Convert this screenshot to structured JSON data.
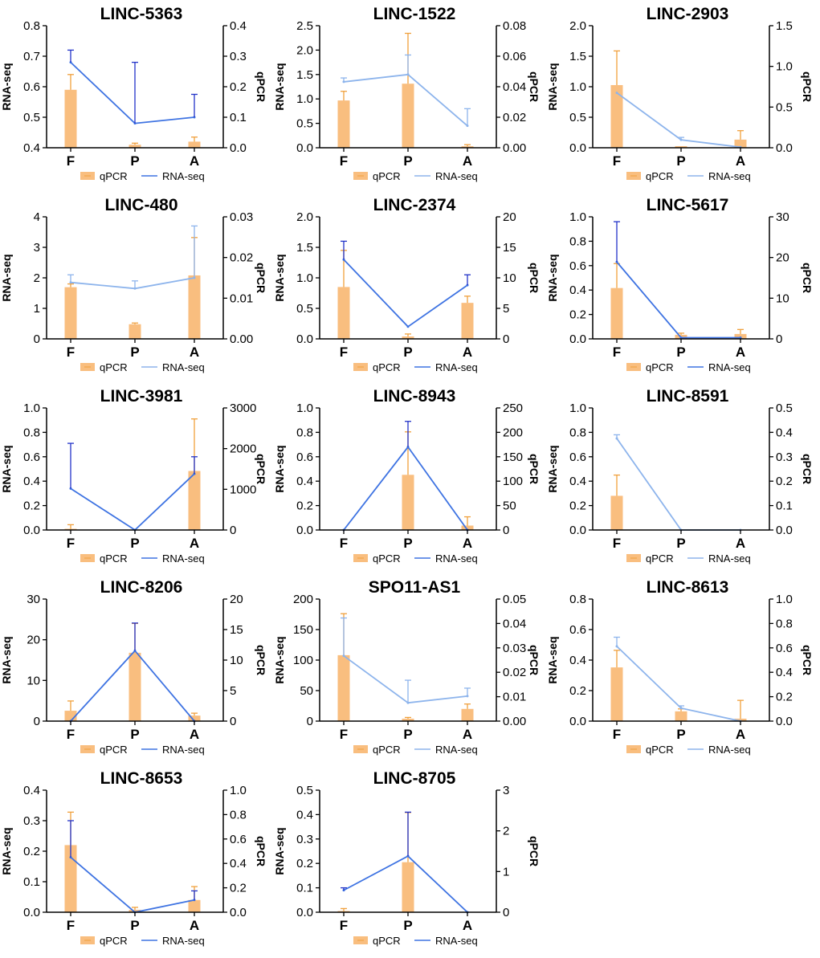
{
  "colors": {
    "bar": "#F9BE7F",
    "bar_err": "#F0A03C",
    "line": "#3E73E2",
    "line_err": "#2233C8",
    "line_light": "#8DB4EC",
    "axis": "#000000"
  },
  "chart_data": [
    {
      "type": "bar+line",
      "title": "LINC-5363",
      "categories": [
        "F",
        "P",
        "A"
      ],
      "ylabel_left": "RNA-seq",
      "ylabel_right": "qPCR",
      "left_ticks": [
        "0.4",
        "0.5",
        "0.6",
        "0.7",
        "0.8"
      ],
      "right_ticks": [
        "0.0",
        "0.1",
        "0.2",
        "0.3",
        "0.4"
      ],
      "ylim_left": [
        0.4,
        0.8
      ],
      "ylim_right": [
        0,
        0.4
      ],
      "series": [
        {
          "name": "qPCR",
          "kind": "bar",
          "axis": "right",
          "values": [
            0.19,
            0.01,
            0.02
          ],
          "errors": [
            0.05,
            0.005,
            0.015
          ]
        },
        {
          "name": "RNA-seq",
          "kind": "line",
          "axis": "left",
          "values": [
            0.68,
            0.48,
            0.5
          ],
          "errors": [
            0.04,
            0.2,
            0.075
          ]
        }
      ],
      "legend": [
        "qPCR",
        "RNA-seq"
      ],
      "line_tone": "dark"
    },
    {
      "type": "bar+line",
      "title": "LINC-1522",
      "categories": [
        "F",
        "P",
        "A"
      ],
      "ylabel_left": "RNA-seq",
      "ylabel_right": "qPCR",
      "left_ticks": [
        "0.0",
        "0.5",
        "1.0",
        "1.5",
        "2.0",
        "2.5"
      ],
      "right_ticks": [
        "0.00",
        "0.02",
        "0.04",
        "0.06",
        "0.08"
      ],
      "ylim_left": [
        0,
        2.5
      ],
      "ylim_right": [
        0,
        0.08
      ],
      "series": [
        {
          "name": "qPCR",
          "kind": "bar",
          "axis": "right",
          "values": [
            0.031,
            0.042,
            0.001
          ],
          "errors": [
            0.006,
            0.033,
            0.001
          ]
        },
        {
          "name": "RNA-seq",
          "kind": "line",
          "axis": "left",
          "values": [
            1.35,
            1.5,
            0.45
          ],
          "errors": [
            0.08,
            0.4,
            0.35
          ]
        }
      ],
      "legend": [
        "qPCR",
        "RNA-seq"
      ],
      "line_tone": "light"
    },
    {
      "type": "bar+line",
      "title": "LINC-2903",
      "categories": [
        "F",
        "P",
        "A"
      ],
      "ylabel_left": "RNA-seq",
      "ylabel_right": "qPCR",
      "left_ticks": [
        "0.0",
        "0.5",
        "1.0",
        "1.5",
        "2.0"
      ],
      "right_ticks": [
        "0.0",
        "0.5",
        "1.0",
        "1.5"
      ],
      "ylim_left": [
        0,
        2.0
      ],
      "ylim_right": [
        0,
        1.5
      ],
      "series": [
        {
          "name": "qPCR",
          "kind": "bar",
          "axis": "right",
          "values": [
            0.77,
            0.02,
            0.1
          ],
          "errors": [
            0.42,
            0.0,
            0.11
          ]
        },
        {
          "name": "RNA-seq",
          "kind": "line",
          "axis": "left",
          "values": [
            0.9,
            0.13,
            0.01
          ],
          "errors": [
            0.0,
            0.04,
            0.0
          ]
        }
      ],
      "legend": [
        "qPCR",
        "RNA-seq"
      ],
      "line_tone": "light"
    },
    {
      "type": "bar+line",
      "title": "LINC-480",
      "categories": [
        "F",
        "P",
        "A"
      ],
      "ylabel_left": "RNA-seq",
      "ylabel_right": "qPCR",
      "left_ticks": [
        "0",
        "1",
        "2",
        "3",
        "4"
      ],
      "right_ticks": [
        "0.00",
        "0.01",
        "0.02",
        "0.03"
      ],
      "ylim_left": [
        0,
        4
      ],
      "ylim_right": [
        0,
        0.03
      ],
      "series": [
        {
          "name": "qPCR",
          "kind": "bar",
          "axis": "right",
          "values": [
            0.0127,
            0.0036,
            0.0156
          ],
          "errors": [
            0.0008,
            0.0003,
            0.0093
          ]
        },
        {
          "name": "RNA-seq",
          "kind": "line",
          "axis": "left",
          "values": [
            1.85,
            1.65,
            2.0
          ],
          "errors": [
            0.25,
            0.25,
            1.7
          ]
        }
      ],
      "legend": [
        "qPCR",
        "RNA-seq"
      ],
      "line_tone": "light"
    },
    {
      "type": "bar+line",
      "title": "LINC-2374",
      "categories": [
        "F",
        "P",
        "A"
      ],
      "ylabel_left": "RNA-seq",
      "ylabel_right": "qPCR",
      "left_ticks": [
        "0.0",
        "0.5",
        "1.0",
        "1.5",
        "2.0"
      ],
      "right_ticks": [
        "0",
        "5",
        "10",
        "15",
        "20"
      ],
      "ylim_left": [
        0,
        2.0
      ],
      "ylim_right": [
        0,
        20
      ],
      "series": [
        {
          "name": "qPCR",
          "kind": "bar",
          "axis": "right",
          "values": [
            8.5,
            0.4,
            5.9
          ],
          "errors": [
            6.0,
            0.4,
            1.1
          ]
        },
        {
          "name": "RNA-seq",
          "kind": "line",
          "axis": "left",
          "values": [
            1.3,
            0.2,
            0.88
          ],
          "errors": [
            0.3,
            0.0,
            0.17
          ]
        }
      ],
      "legend": [
        "qPCR",
        "RNA-seq"
      ],
      "line_tone": "dark"
    },
    {
      "type": "bar+line",
      "title": "LINC-5617",
      "categories": [
        "F",
        "P",
        "A"
      ],
      "ylabel_left": "RNA-seq",
      "ylabel_right": "qPCR",
      "left_ticks": [
        "0.0",
        "0.2",
        "0.4",
        "0.6",
        "0.8",
        "1.0"
      ],
      "right_ticks": [
        "0",
        "10",
        "20",
        "30"
      ],
      "ylim_left": [
        0,
        1.0
      ],
      "ylim_right": [
        0,
        30
      ],
      "series": [
        {
          "name": "qPCR",
          "kind": "bar",
          "axis": "right",
          "values": [
            12.5,
            1.0,
            1.2
          ],
          "errors": [
            6.0,
            0.4,
            1.1
          ]
        },
        {
          "name": "RNA-seq",
          "kind": "line",
          "axis": "left",
          "values": [
            0.63,
            0.01,
            0.01
          ],
          "errors": [
            0.33,
            0.0,
            0.0
          ]
        }
      ],
      "legend": [
        "qPCR",
        "RNA-seq"
      ],
      "line_tone": "dark"
    },
    {
      "type": "bar+line",
      "title": "LINC-3981",
      "categories": [
        "F",
        "P",
        "A"
      ],
      "ylabel_left": "RNA-seq",
      "ylabel_right": "qPCR",
      "left_ticks": [
        "0.0",
        "0.2",
        "0.4",
        "0.6",
        "0.8",
        "1.0"
      ],
      "right_ticks": [
        "0",
        "1000",
        "2000",
        "3000"
      ],
      "ylim_left": [
        0,
        1.0
      ],
      "ylim_right": [
        0,
        3000
      ],
      "series": [
        {
          "name": "qPCR",
          "kind": "bar",
          "axis": "right",
          "values": [
            30,
            0,
            1450
          ],
          "errors": [
            100,
            0,
            1280
          ]
        },
        {
          "name": "RNA-seq",
          "kind": "line",
          "axis": "left",
          "values": [
            0.34,
            0.0,
            0.46
          ],
          "errors": [
            0.37,
            0.0,
            0.14
          ]
        }
      ],
      "legend": [
        "qPCR",
        "RNA-seq"
      ],
      "line_tone": "dark"
    },
    {
      "type": "bar+line",
      "title": "LINC-8943",
      "categories": [
        "F",
        "P",
        "A"
      ],
      "ylabel_left": "RNA-seq",
      "ylabel_right": "qPCR",
      "left_ticks": [
        "0.0",
        "0.2",
        "0.4",
        "0.6",
        "0.8",
        "1.0"
      ],
      "right_ticks": [
        "0",
        "50",
        "100",
        "150",
        "200",
        "250"
      ],
      "ylim_left": [
        0,
        1.0
      ],
      "ylim_right": [
        0,
        250
      ],
      "series": [
        {
          "name": "qPCR",
          "kind": "bar",
          "axis": "right",
          "values": [
            0,
            113,
            9
          ],
          "errors": [
            0,
            88,
            18
          ]
        },
        {
          "name": "RNA-seq",
          "kind": "line",
          "axis": "left",
          "values": [
            0.0,
            0.68,
            0.0
          ],
          "errors": [
            0.0,
            0.21,
            0.0
          ]
        }
      ],
      "legend": [
        "qPCR",
        "RNA-seq"
      ],
      "line_tone": "dark"
    },
    {
      "type": "bar+line",
      "title": "LINC-8591",
      "categories": [
        "F",
        "P",
        "A"
      ],
      "ylabel_left": "RNA-seq",
      "ylabel_right": "qPCR",
      "left_ticks": [
        "0.0",
        "0.2",
        "0.4",
        "0.6",
        "0.8",
        "1.0"
      ],
      "right_ticks": [
        "0.0",
        "0.1",
        "0.2",
        "0.3",
        "0.4",
        "0.5"
      ],
      "ylim_left": [
        0,
        1.0
      ],
      "ylim_right": [
        0,
        0.5
      ],
      "series": [
        {
          "name": "qPCR",
          "kind": "bar",
          "axis": "right",
          "values": [
            0.14,
            0,
            0
          ],
          "errors": [
            0.085,
            0,
            0
          ]
        },
        {
          "name": "RNA-seq",
          "kind": "line",
          "axis": "left",
          "values": [
            0.75,
            0.0,
            0.0
          ],
          "errors": [
            0.03,
            0.0,
            0.0
          ]
        }
      ],
      "legend": [
        "qPCR",
        "RNA-seq"
      ],
      "line_tone": "light"
    },
    {
      "type": "bar+line",
      "title": "LINC-8206",
      "categories": [
        "F",
        "P",
        "A"
      ],
      "ylabel_left": "RNA-seq",
      "ylabel_right": "qPCR",
      "left_ticks": [
        "0",
        "10",
        "20",
        "30"
      ],
      "right_ticks": [
        "0",
        "5",
        "10",
        "15",
        "20"
      ],
      "ylim_left": [
        0,
        30
      ],
      "ylim_right": [
        0,
        20
      ],
      "series": [
        {
          "name": "qPCR",
          "kind": "bar",
          "axis": "right",
          "values": [
            1.7,
            11.2,
            0.9
          ],
          "errors": [
            1.6,
            4.8,
            0.4
          ]
        },
        {
          "name": "RNA-seq",
          "kind": "line",
          "axis": "left",
          "values": [
            0.0,
            17.3,
            0.0
          ],
          "errors": [
            0.0,
            6.8,
            0.0
          ]
        }
      ],
      "legend": [
        "qPCR",
        "RNA-seq"
      ],
      "line_tone": "dark"
    },
    {
      "type": "bar+line",
      "title": "SPO11-AS1",
      "categories": [
        "F",
        "P",
        "A"
      ],
      "ylabel_left": "RNA-seq",
      "ylabel_right": "qPCR",
      "left_ticks": [
        "0",
        "50",
        "100",
        "150",
        "200"
      ],
      "right_ticks": [
        "0.00",
        "0.01",
        "0.02",
        "0.03",
        "0.04",
        "0.05"
      ],
      "ylim_left": [
        0,
        200
      ],
      "ylim_right": [
        0,
        0.05
      ],
      "series": [
        {
          "name": "qPCR",
          "kind": "bar",
          "axis": "right",
          "values": [
            0.027,
            0.001,
            0.005
          ],
          "errors": [
            0.017,
            0.0005,
            0.002
          ]
        },
        {
          "name": "RNA-seq",
          "kind": "line",
          "axis": "left",
          "values": [
            107,
            30,
            41
          ],
          "errors": [
            62,
            37,
            13
          ]
        }
      ],
      "legend": [
        "qPCR",
        "RNA-seq"
      ],
      "line_tone": "light"
    },
    {
      "type": "bar+line",
      "title": "LINC-8613",
      "categories": [
        "F",
        "P",
        "A"
      ],
      "ylabel_left": "RNA-seq",
      "ylabel_right": "qPCR",
      "left_ticks": [
        "0.0",
        "0.2",
        "0.4",
        "0.6",
        "0.8"
      ],
      "right_ticks": [
        "0.0",
        "0.2",
        "0.4",
        "0.6",
        "0.8",
        "1.0"
      ],
      "ylim_left": [
        0,
        0.8
      ],
      "ylim_right": [
        0,
        1.0
      ],
      "series": [
        {
          "name": "qPCR",
          "kind": "bar",
          "axis": "right",
          "values": [
            0.44,
            0.08,
            0.02
          ],
          "errors": [
            0.14,
            0.02,
            0.15
          ]
        },
        {
          "name": "RNA-seq",
          "kind": "line",
          "axis": "left",
          "values": [
            0.49,
            0.085,
            0.0
          ],
          "errors": [
            0.06,
            0.015,
            0.0
          ]
        }
      ],
      "legend": [
        "qPCR",
        "RNA-seq"
      ],
      "line_tone": "light"
    },
    {
      "type": "bar+line",
      "title": "LINC-8653",
      "categories": [
        "F",
        "P",
        "A"
      ],
      "ylabel_left": "RNA-seq",
      "ylabel_right": "qPCR",
      "left_ticks": [
        "0.0",
        "0.1",
        "0.2",
        "0.3",
        "0.4"
      ],
      "right_ticks": [
        "0.0",
        "0.2",
        "0.4",
        "0.6",
        "0.8",
        "1.0"
      ],
      "ylim_left": [
        0,
        0.4
      ],
      "ylim_right": [
        0,
        1.0
      ],
      "series": [
        {
          "name": "qPCR",
          "kind": "bar",
          "axis": "right",
          "values": [
            0.55,
            0.02,
            0.1
          ],
          "errors": [
            0.27,
            0.02,
            0.11
          ]
        },
        {
          "name": "RNA-seq",
          "kind": "line",
          "axis": "left",
          "values": [
            0.18,
            0.0,
            0.04
          ],
          "errors": [
            0.12,
            0.0,
            0.03
          ]
        }
      ],
      "legend": [
        "qPCR",
        "RNA-seq"
      ],
      "line_tone": "dark"
    },
    {
      "type": "bar+line",
      "title": "LINC-8705",
      "categories": [
        "F",
        "P",
        "A"
      ],
      "ylabel_left": "RNA-seq",
      "ylabel_right": "qPCR",
      "left_ticks": [
        "0.0",
        "0.1",
        "0.2",
        "0.3",
        "0.4",
        "0.5"
      ],
      "right_ticks": [
        "0",
        "1",
        "2",
        "3"
      ],
      "ylim_left": [
        0,
        0.5
      ],
      "ylim_right": [
        0,
        3
      ],
      "series": [
        {
          "name": "qPCR",
          "kind": "bar",
          "axis": "right",
          "values": [
            0.03,
            1.23,
            0.0
          ],
          "errors": [
            0.06,
            1.22,
            0.0
          ]
        },
        {
          "name": "RNA-seq",
          "kind": "line",
          "axis": "left",
          "values": [
            0.09,
            0.23,
            0.0
          ],
          "errors": [
            0.01,
            0.18,
            0.0
          ]
        }
      ],
      "legend": [
        "qPCR",
        "RNA-seq"
      ],
      "line_tone": "dark"
    }
  ]
}
